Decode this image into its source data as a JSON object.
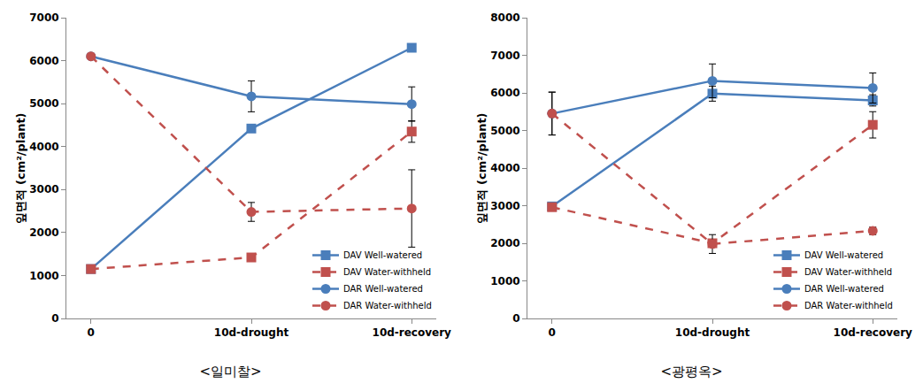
{
  "chart_data": [
    {
      "type": "line",
      "caption": "<일미찰>",
      "y_label": "잎면적 (cm²/plant)",
      "categories": [
        "0",
        "10d-drought",
        "10d-recovery"
      ],
      "ylim": [
        0,
        7000
      ],
      "yticks": [
        0,
        1000,
        2000,
        3000,
        4000,
        5000,
        6000,
        7000
      ],
      "grid": false,
      "legend": "bottom-right",
      "series": [
        {
          "name": "DAV Well-watered",
          "color": "#4a7ebb",
          "marker": "square",
          "line_style": "solid",
          "values": [
            1150,
            4420,
            6300
          ],
          "errors": [
            0,
            80,
            50
          ]
        },
        {
          "name": "DAV Water-withheld",
          "color": "#c0504d",
          "marker": "square",
          "line_style": "dash",
          "values": [
            1150,
            1420,
            4350
          ],
          "errors": [
            0,
            80,
            250
          ]
        },
        {
          "name": "DAR Well-watered",
          "color": "#4a7ebb",
          "marker": "circle",
          "line_style": "solid",
          "values": [
            6100,
            5170,
            4990
          ],
          "errors": [
            0,
            360,
            400
          ]
        },
        {
          "name": "DAR Water-withheld",
          "color": "#c0504d",
          "marker": "circle",
          "line_style": "dash",
          "values": [
            6100,
            2480,
            2560
          ],
          "errors": [
            0,
            220,
            900
          ]
        }
      ]
    },
    {
      "type": "line",
      "caption": "<광평옥>",
      "y_label": "잎면적 (cm²/plant)",
      "categories": [
        "0",
        "10d-drought",
        "10d-recovery"
      ],
      "ylim": [
        0,
        8000
      ],
      "yticks": [
        0,
        1000,
        2000,
        3000,
        4000,
        5000,
        6000,
        7000,
        8000
      ],
      "grid": false,
      "legend": "bottom-right",
      "series": [
        {
          "name": "DAV Well-watered",
          "color": "#4a7ebb",
          "marker": "square",
          "line_style": "solid",
          "values": [
            2980,
            5980,
            5800
          ],
          "errors": [
            0,
            200,
            150
          ]
        },
        {
          "name": "DAV Water-withheld",
          "color": "#c0504d",
          "marker": "square",
          "line_style": "dash",
          "values": [
            2960,
            2000,
            5150
          ],
          "errors": [
            0,
            100,
            350
          ]
        },
        {
          "name": "DAR Well-watered",
          "color": "#4a7ebb",
          "marker": "circle",
          "line_style": "solid",
          "values": [
            5450,
            6320,
            6130
          ],
          "errors": [
            570,
            450,
            400
          ]
        },
        {
          "name": "DAR Water-withheld",
          "color": "#c0504d",
          "marker": "circle",
          "line_style": "dash",
          "values": [
            5450,
            1980,
            2330
          ],
          "errors": [
            570,
            250,
            100
          ]
        }
      ]
    }
  ]
}
